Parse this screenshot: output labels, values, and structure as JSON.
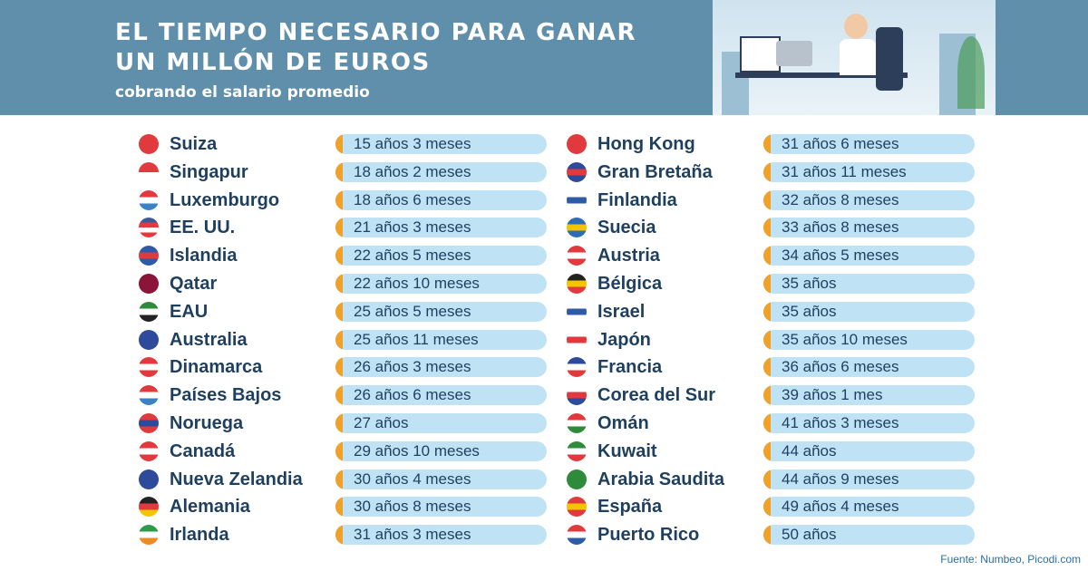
{
  "header": {
    "title_line1": "EL TIEMPO NECESARIO PARA GANAR",
    "title_line2": "UN MILLÓN DE EUROS",
    "subtitle": "cobrando el salario promedio"
  },
  "colors": {
    "header": "#5f8fab",
    "pill": "#bfe3f5",
    "accent": "#f0a12a",
    "text": "#1f3f5f"
  },
  "chart_data": {
    "type": "table",
    "title": "EL TIEMPO NECESARIO PARA GANAR UN MILLÓN DE EUROS",
    "subtitle": "cobrando el salario promedio",
    "columns": [
      [
        {
          "country": "Suiza",
          "time": "15 años 3 meses",
          "flag": [
            "#e03a3e",
            "#e03a3e"
          ]
        },
        {
          "country": "Singapur",
          "time": "18 años 2 meses",
          "flag": [
            "#e03a3e",
            "#ffffff"
          ]
        },
        {
          "country": "Luxemburgo",
          "time": "18 años 6 meses",
          "flag": [
            "#e03a3e",
            "#ffffff",
            "#3b82c4"
          ]
        },
        {
          "country": "EE. UU.",
          "time": "21 años 3 meses",
          "flag": [
            "#3c5a9a",
            "#e03a3e",
            "#ffffff",
            "#e03a3e"
          ]
        },
        {
          "country": "Islandia",
          "time": "22 años 5 meses",
          "flag": [
            "#2e5ba8",
            "#e03a3e",
            "#2e5ba8"
          ]
        },
        {
          "country": "Qatar",
          "time": "22 años 10 meses",
          "flag": [
            "#8a1538",
            "#8a1538"
          ]
        },
        {
          "country": "EAU",
          "time": "25 años 5 meses",
          "flag": [
            "#2e8b3a",
            "#ffffff",
            "#222222"
          ]
        },
        {
          "country": "Australia",
          "time": "25 años 11 meses",
          "flag": [
            "#2e4a9a",
            "#2e4a9a"
          ]
        },
        {
          "country": "Dinamarca",
          "time": "26 años 3 meses",
          "flag": [
            "#e03a3e",
            "#ffffff",
            "#e03a3e"
          ]
        },
        {
          "country": "Países Bajos",
          "time": "26 años 6 meses",
          "flag": [
            "#e03a3e",
            "#ffffff",
            "#3b82c4"
          ]
        },
        {
          "country": "Noruega",
          "time": "27 años",
          "flag": [
            "#e03a3e",
            "#2e4a9a",
            "#e03a3e"
          ]
        },
        {
          "country": "Canadá",
          "time": "29 años 10 meses",
          "flag": [
            "#e03a3e",
            "#ffffff",
            "#e03a3e"
          ]
        },
        {
          "country": "Nueva Zelandia",
          "time": "30 años 4 meses",
          "flag": [
            "#2e4a9a",
            "#2e4a9a"
          ]
        },
        {
          "country": "Alemania",
          "time": "30 años 8 meses",
          "flag": [
            "#222222",
            "#e03a3e",
            "#f5c400"
          ]
        },
        {
          "country": "Irlanda",
          "time": "31 años 3 meses",
          "flag": [
            "#2e9b4a",
            "#ffffff",
            "#f08a24"
          ]
        }
      ],
      [
        {
          "country": "Hong Kong",
          "time": "31 años 6 meses",
          "flag": [
            "#e03a3e",
            "#e03a3e"
          ]
        },
        {
          "country": "Gran Bretaña",
          "time": "31 años 11 meses",
          "flag": [
            "#2e4a9a",
            "#e03a3e",
            "#2e4a9a"
          ]
        },
        {
          "country": "Finlandia",
          "time": "32 años 8 meses",
          "flag": [
            "#ffffff",
            "#2e5ba8",
            "#ffffff"
          ]
        },
        {
          "country": "Suecia",
          "time": "33 años 8 meses",
          "flag": [
            "#2e6cb5",
            "#f5c400",
            "#2e6cb5"
          ]
        },
        {
          "country": "Austria",
          "time": "34 años 5 meses",
          "flag": [
            "#e03a3e",
            "#ffffff",
            "#e03a3e"
          ]
        },
        {
          "country": "Bélgica",
          "time": "35 años",
          "flag": [
            "#222222",
            "#f5c400",
            "#e03a3e"
          ]
        },
        {
          "country": "Israel",
          "time": "35 años",
          "flag": [
            "#ffffff",
            "#2e5ba8",
            "#ffffff"
          ]
        },
        {
          "country": "Japón",
          "time": "35 años 10 meses",
          "flag": [
            "#ffffff",
            "#e03a3e",
            "#ffffff"
          ]
        },
        {
          "country": "Francia",
          "time": "36 años 6 meses",
          "flag": [
            "#2e4a9a",
            "#ffffff",
            "#e03a3e"
          ]
        },
        {
          "country": "Corea del Sur",
          "time": "39 años 1 mes",
          "flag": [
            "#ffffff",
            "#e03a3e",
            "#2e4a9a"
          ]
        },
        {
          "country": "Omán",
          "time": "41 años 3 meses",
          "flag": [
            "#e03a3e",
            "#ffffff",
            "#2e8b3a"
          ]
        },
        {
          "country": "Kuwait",
          "time": "44 años",
          "flag": [
            "#2e8b3a",
            "#ffffff",
            "#e03a3e"
          ]
        },
        {
          "country": "Arabia Saudita",
          "time": "44 años 9 meses",
          "flag": [
            "#2e8b3a",
            "#2e8b3a"
          ]
        },
        {
          "country": "España",
          "time": "49 años 4 meses",
          "flag": [
            "#e03a3e",
            "#f5c400",
            "#e03a3e"
          ]
        },
        {
          "country": "Puerto Rico",
          "time": "50 años",
          "flag": [
            "#e03a3e",
            "#ffffff",
            "#2e5ba8"
          ]
        }
      ]
    ]
  },
  "footer": {
    "source": "Fuente: Numbeo, Picodi.com"
  }
}
